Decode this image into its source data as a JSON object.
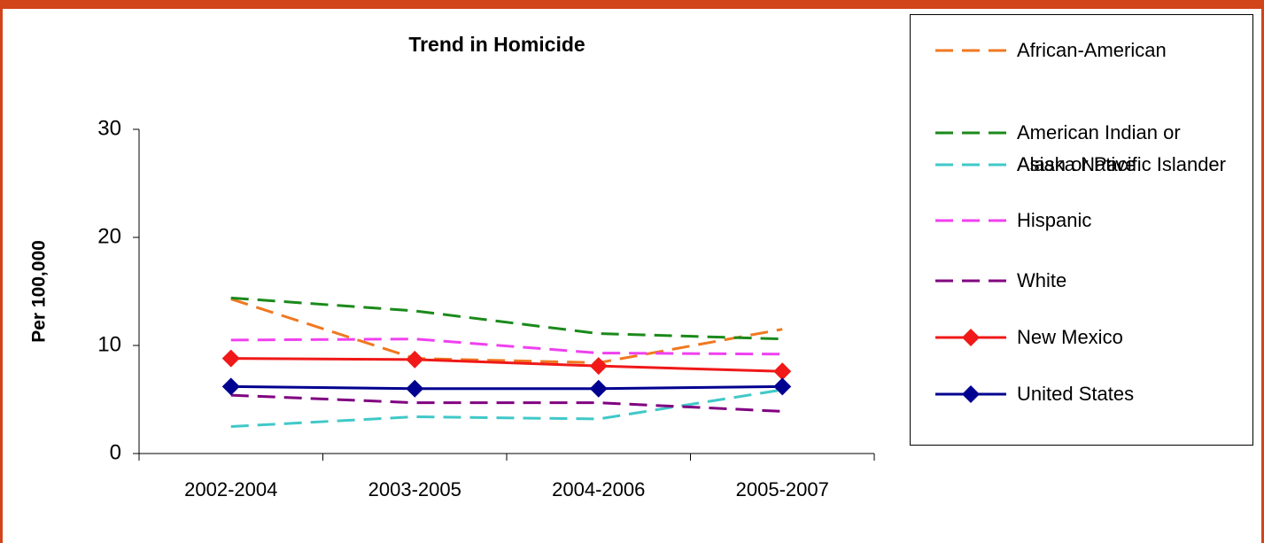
{
  "chart_data": {
    "type": "line",
    "title": "Trend in Homicide",
    "y_label": "Per 100,000",
    "categories": [
      "2002-2004",
      "2003-2005",
      "2004-2006",
      "2005-2007"
    ],
    "ylim": [
      0,
      30
    ],
    "yticks": [
      0,
      10,
      20,
      30
    ],
    "grid": false,
    "legend": "right",
    "series": [
      {
        "name": "African-American",
        "color": "#f07820",
        "line_style": "dashed",
        "values": [
          14.3,
          8.8,
          8.4,
          11.5
        ]
      },
      {
        "name": "American Indian or Alaska Native",
        "color": "#1a8a1a",
        "line_style": "dashed",
        "values": [
          14.4,
          13.2,
          11.1,
          10.6
        ]
      },
      {
        "name": "Asian or Pacific Islander",
        "color": "#40c8c8",
        "line_style": "dashed",
        "values": [
          2.5,
          3.4,
          3.2,
          5.9
        ]
      },
      {
        "name": "Hispanic",
        "color": "#f040f0",
        "line_style": "dashed",
        "values": [
          10.5,
          10.6,
          9.3,
          9.2
        ]
      },
      {
        "name": "White",
        "color": "#800080",
        "line_style": "dashed",
        "values": [
          5.4,
          4.7,
          4.7,
          3.9
        ]
      },
      {
        "name": "New Mexico",
        "color": "#f01818",
        "line_style": "solid",
        "marker": "diamond",
        "values": [
          8.8,
          8.7,
          8.1,
          7.6
        ]
      },
      {
        "name": "United States",
        "color": "#000090",
        "line_style": "solid",
        "marker": "diamond",
        "values": [
          6.2,
          6.0,
          6.0,
          6.2
        ]
      }
    ]
  }
}
